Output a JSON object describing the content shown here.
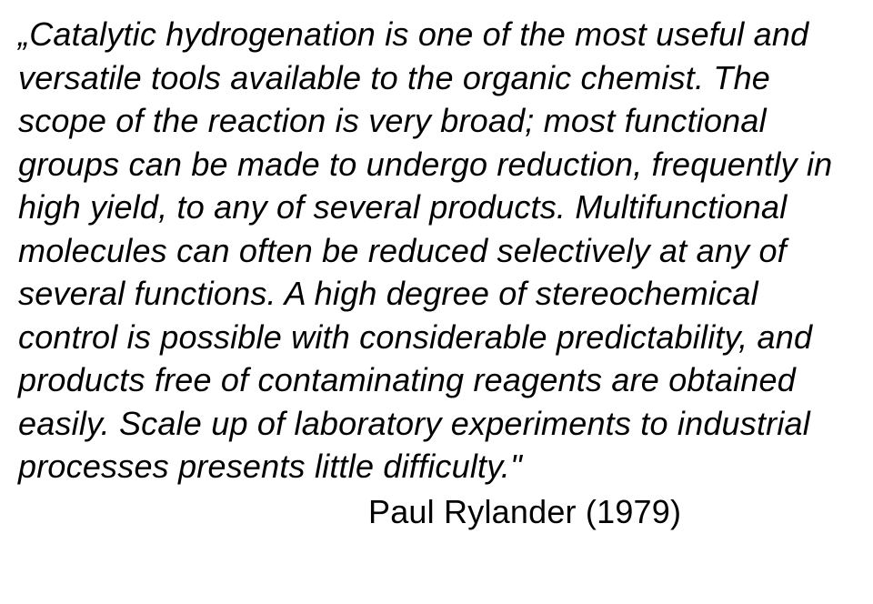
{
  "quote": {
    "text": "„Catalytic hydrogenation is one of the most useful and versatile tools available to the organic chemist. The scope of the reaction is very broad; most functional groups can be made to undergo reduction, frequently in high yield, to any of several products. Multifunctional molecules can often be reduced selectively at any of several functions. A high degree of stereochemical control is possible with considerable predictability, and products free of contaminating reagents are obtained easily. Scale up of laboratory experiments to industrial processes presents little difficulty.\"",
    "attribution": "Paul Rylander (1979)"
  },
  "style": {
    "background_color": "#ffffff",
    "text_color": "#000000",
    "fontsize_pt": 27,
    "font_family": "Arial",
    "quote_style": "italic",
    "attribution_style": "normal",
    "line_height": 1.32
  }
}
